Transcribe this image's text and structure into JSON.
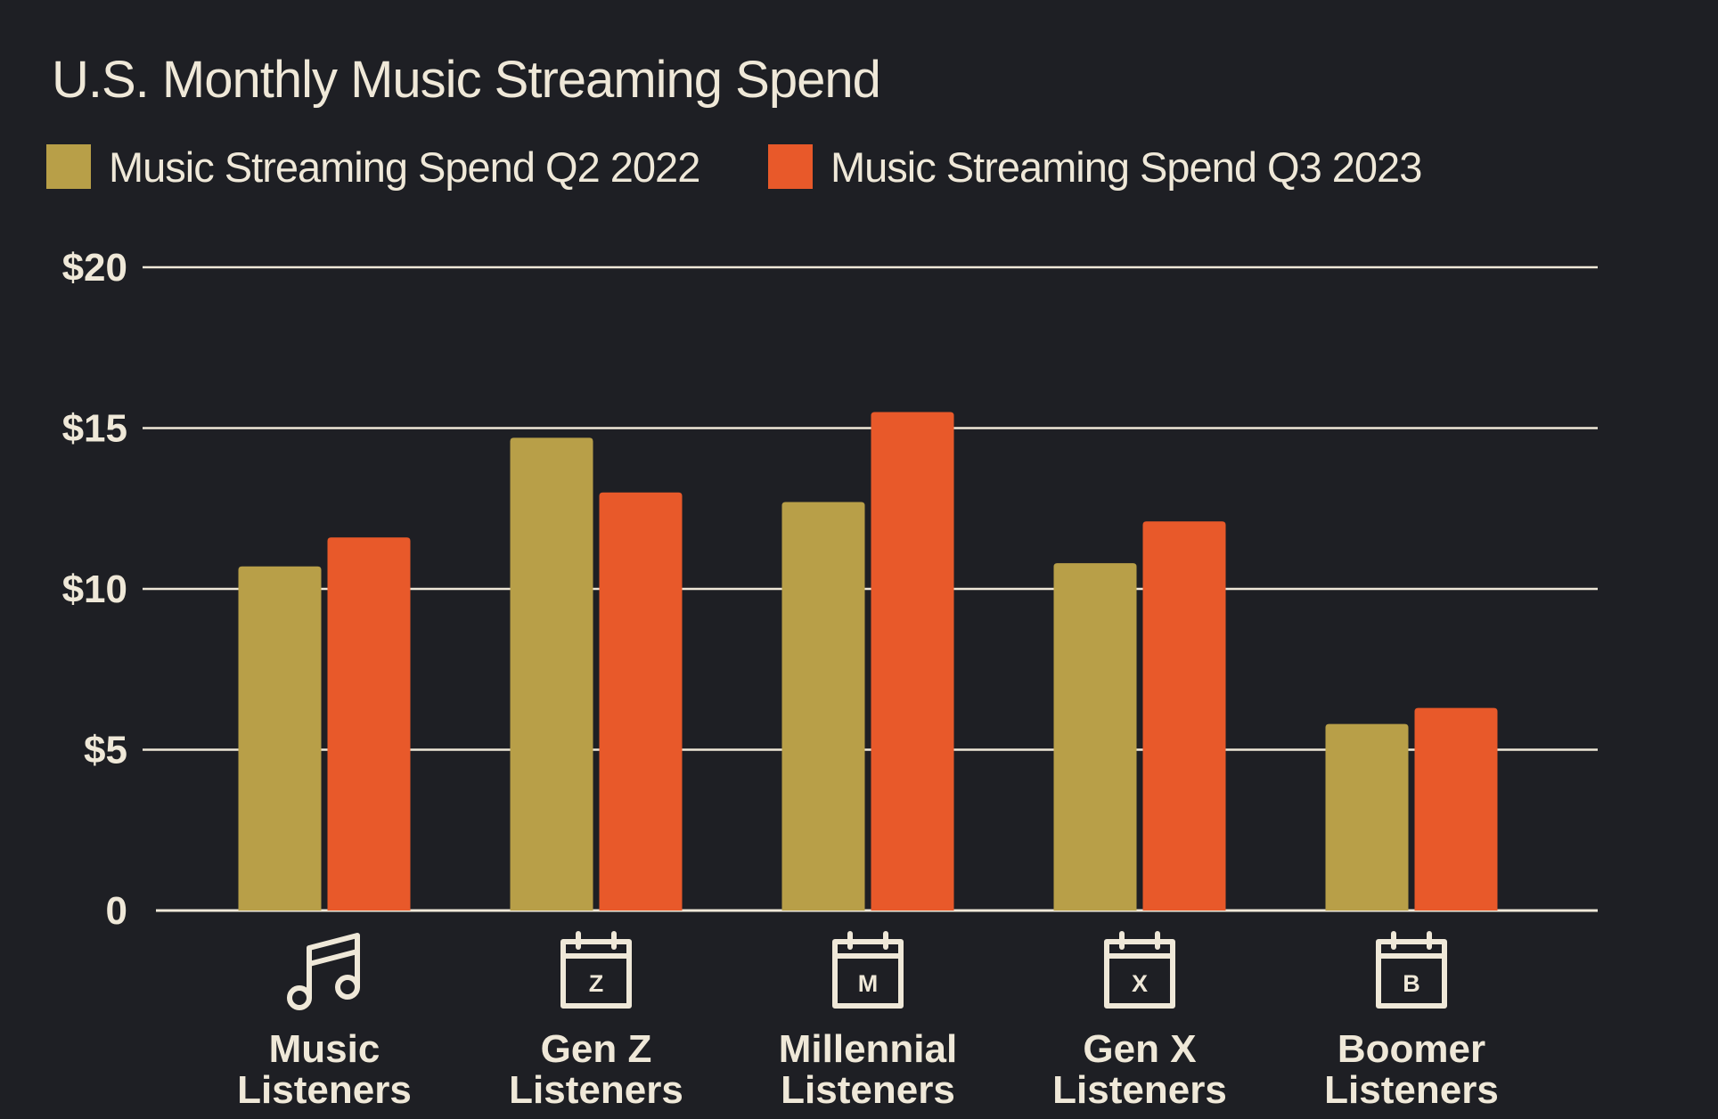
{
  "chart_data": {
    "type": "bar",
    "title": "U.S. Monthly Music Streaming Spend",
    "categories": [
      "Music Listeners",
      "Gen Z Listeners",
      "Millennial Listeners",
      "Gen X Listeners",
      "Boomer Listeners"
    ],
    "category_lines": [
      [
        "Music",
        "Listeners"
      ],
      [
        "Gen Z",
        "Listeners"
      ],
      [
        "Millennial",
        "Listeners"
      ],
      [
        "Gen X",
        "Listeners"
      ],
      [
        "Boomer",
        "Listeners"
      ]
    ],
    "category_icons": [
      {
        "icon": "music-note-icon"
      },
      {
        "icon": "calendar-icon",
        "letter": "Z"
      },
      {
        "icon": "calendar-icon",
        "letter": "M"
      },
      {
        "icon": "calendar-icon",
        "letter": "X"
      },
      {
        "icon": "calendar-icon",
        "letter": "B"
      }
    ],
    "series": [
      {
        "name": "Music Streaming Spend Q2 2022",
        "color": "#b89f48",
        "values": [
          10.7,
          14.7,
          12.7,
          10.8,
          5.8
        ]
      },
      {
        "name": "Music Streaming Spend Q3 2023",
        "color": "#e8592a",
        "values": [
          11.6,
          13.0,
          15.5,
          12.1,
          6.3
        ]
      }
    ],
    "ylim": [
      0,
      20
    ],
    "yticks": [
      0,
      5,
      10,
      15,
      20
    ],
    "ytick_labels": [
      "0",
      "$5",
      "$10",
      "$15",
      "$20"
    ],
    "xlabel": "",
    "ylabel": "",
    "grid": true,
    "legend_position": "top-left",
    "colors": {
      "background": "#1e1f24",
      "text": "#efe8d8",
      "grid": "#efe8d8"
    }
  }
}
